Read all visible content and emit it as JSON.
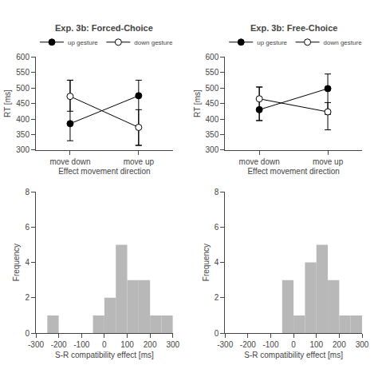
{
  "chart_data": [
    {
      "type": "line",
      "title": "Exp. 3b: Forced-Choice",
      "categories": [
        "move down",
        "move up"
      ],
      "series": [
        {
          "name": "up gesture",
          "color": "#000000",
          "marker": "filled",
          "line_style": "solid",
          "values": [
            385,
            475
          ],
          "error_low": [
            55,
            160
          ],
          "error_high": [
            140,
            50
          ]
        },
        {
          "name": "down gesture",
          "color": "#000000",
          "marker": "open",
          "line_style": "solid",
          "values": [
            473,
            373
          ],
          "error_low": [
            48,
            58
          ],
          "error_high": [
            52,
            57
          ]
        }
      ],
      "xlabel": "Effect movement direction",
      "ylabel": "RT [ms]",
      "ylim": [
        300,
        600
      ],
      "yticks": [
        300,
        350,
        400,
        450,
        500,
        550,
        600
      ],
      "grid": false,
      "legend": "upper left"
    },
    {
      "type": "line",
      "title": "Exp. 3b: Free-Choice",
      "categories": [
        "move down",
        "move up"
      ],
      "series": [
        {
          "name": "up gesture",
          "color": "#000000",
          "marker": "filled",
          "line_style": "solid",
          "values": [
            430,
            498
          ],
          "error_low": [
            35,
            133
          ],
          "error_high": [
            73,
            47
          ]
        },
        {
          "name": "down gesture",
          "color": "#000000",
          "marker": "open",
          "line_style": "solid",
          "values": [
            465,
            423
          ],
          "error_low": [
            70,
            8
          ],
          "error_high": [
            38,
            30
          ]
        }
      ],
      "xlabel": "Effect movement direction",
      "ylabel": "RT [ms]",
      "ylim": [
        300,
        600
      ],
      "yticks": [
        300,
        350,
        400,
        450,
        500,
        550,
        600
      ],
      "grid": false,
      "legend": "upper left"
    },
    {
      "type": "histogram",
      "bins": [
        -300,
        -250,
        -200,
        -150,
        -100,
        -50,
        0,
        50,
        100,
        150,
        200,
        250,
        300
      ],
      "counts": [
        0,
        1,
        0,
        0,
        0,
        1,
        2,
        5,
        3,
        3,
        1,
        1
      ],
      "color": "#b8b8b8",
      "xlabel": "S-R compatibility effect [ms]",
      "ylabel": "Frequency",
      "xlim": [
        -300,
        300
      ],
      "xticks": [
        -300,
        -200,
        -100,
        0,
        100,
        200,
        300
      ],
      "ylim": [
        0,
        8
      ],
      "yticks": [
        0,
        2,
        4,
        6,
        8
      ],
      "grid": false
    },
    {
      "type": "histogram",
      "bins": [
        -300,
        -250,
        -200,
        -150,
        -100,
        -50,
        0,
        50,
        100,
        150,
        200,
        250,
        300
      ],
      "counts": [
        0,
        0,
        0,
        0,
        0,
        3,
        1,
        4,
        5,
        3,
        1,
        1
      ],
      "color": "#b8b8b8",
      "xlabel": "S-R compatibility effect [ms]",
      "ylabel": "Frequency",
      "xlim": [
        -300,
        300
      ],
      "xticks": [
        -300,
        -200,
        -100,
        0,
        100,
        200,
        300
      ],
      "ylim": [
        0,
        8
      ],
      "yticks": [
        0,
        2,
        4,
        6,
        8
      ],
      "grid": false
    }
  ]
}
